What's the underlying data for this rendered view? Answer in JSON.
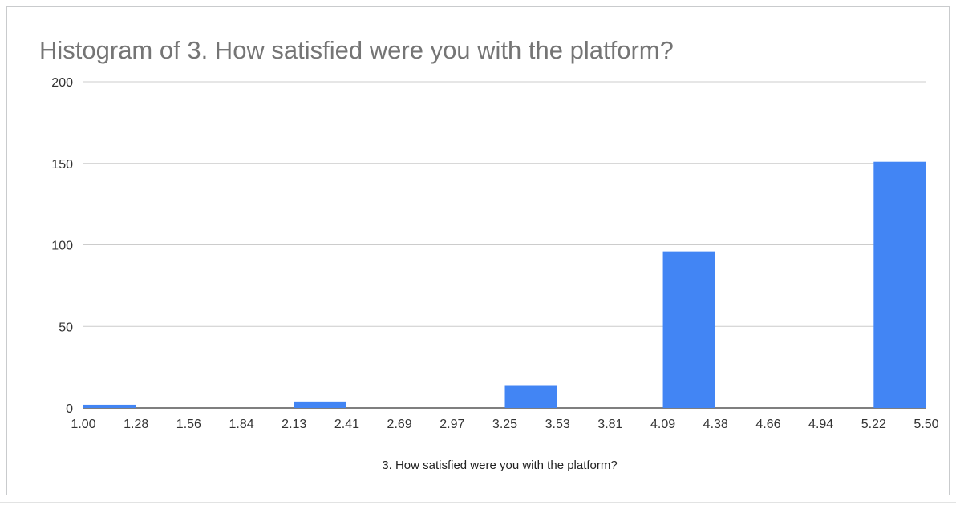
{
  "chart_data": {
    "type": "bar",
    "title": "Histogram of 3. How satisfied were you with the platform?",
    "xlabel": "3. How satisfied were you with the platform?",
    "ylabel": "",
    "bin_edges": [
      "1.00",
      "1.28",
      "1.56",
      "1.84",
      "2.13",
      "2.41",
      "2.69",
      "2.97",
      "3.25",
      "3.53",
      "3.81",
      "4.09",
      "4.38",
      "4.66",
      "4.94",
      "5.22",
      "5.50"
    ],
    "values": [
      2,
      0,
      0,
      0,
      4,
      0,
      0,
      0,
      14,
      0,
      0,
      96,
      0,
      0,
      0,
      151
    ],
    "yticks": [
      0,
      50,
      100,
      150,
      200
    ],
    "ylim": [
      0,
      200
    ],
    "grid": true,
    "legend": "none",
    "bar_color": "#4285f4"
  }
}
